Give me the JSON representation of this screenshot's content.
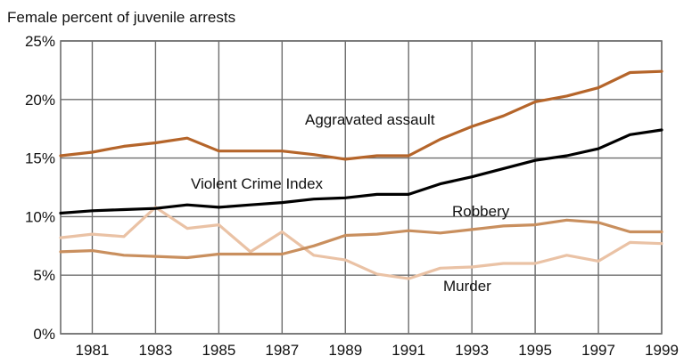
{
  "chart_data": {
    "type": "line",
    "title": "Female percent of juvenile arrests",
    "xlabel": "",
    "ylabel": "",
    "x": [
      1980,
      1981,
      1982,
      1983,
      1984,
      1985,
      1986,
      1987,
      1988,
      1989,
      1990,
      1991,
      1992,
      1993,
      1994,
      1995,
      1996,
      1997,
      1998,
      1999
    ],
    "xticks": [
      "1981",
      "1983",
      "1985",
      "1987",
      "1989",
      "1991",
      "1993",
      "1995",
      "1997",
      "1999"
    ],
    "yticks": [
      "0%",
      "5%",
      "10%",
      "15%",
      "20%",
      "25%"
    ],
    "ylim": [
      0,
      25
    ],
    "grid": "vertical at odd years, horizontal at every 5%",
    "series": [
      {
        "name": "Aggravated assault",
        "color": "#b5652a",
        "values": [
          15.2,
          15.5,
          16.0,
          16.3,
          16.7,
          15.6,
          15.6,
          15.6,
          15.3,
          14.9,
          15.2,
          15.2,
          16.6,
          17.7,
          18.6,
          19.8,
          20.3,
          21.0,
          22.3,
          22.4
        ]
      },
      {
        "name": "Violent Crime Index",
        "color": "#000000",
        "values": [
          10.3,
          10.5,
          10.6,
          10.7,
          11.0,
          10.8,
          11.0,
          11.2,
          11.5,
          11.6,
          11.9,
          11.9,
          12.8,
          13.4,
          14.1,
          14.8,
          15.2,
          15.8,
          17.0,
          17.4
        ]
      },
      {
        "name": "Robbery",
        "color": "#c98f5e",
        "values": [
          7.0,
          7.1,
          6.7,
          6.6,
          6.5,
          6.8,
          6.8,
          6.8,
          7.5,
          8.4,
          8.5,
          8.8,
          8.6,
          8.9,
          9.2,
          9.3,
          9.7,
          9.5,
          8.7,
          8.7
        ]
      },
      {
        "name": "Murder",
        "color": "#eac2a5",
        "values": [
          8.2,
          8.5,
          8.3,
          10.8,
          9.0,
          9.3,
          7.0,
          8.7,
          6.7,
          6.3,
          5.1,
          4.7,
          5.6,
          5.7,
          6.0,
          6.0,
          6.7,
          6.2,
          7.8,
          7.7
        ]
      }
    ]
  }
}
